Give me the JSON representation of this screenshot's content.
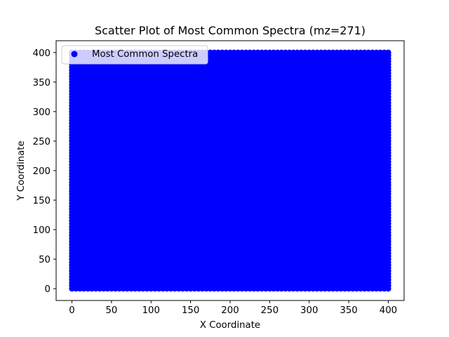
{
  "chart_data": {
    "type": "scatter",
    "title": "Scatter Plot of Most Common Spectra (mz=271)",
    "xlabel": "X Coordinate",
    "ylabel": "Y Coordinate",
    "xlim": [
      -20,
      420
    ],
    "ylim": [
      -20,
      420
    ],
    "xticks": [
      0,
      50,
      100,
      150,
      200,
      250,
      300,
      350,
      400
    ],
    "yticks": [
      0,
      50,
      100,
      150,
      200,
      250,
      300,
      350,
      400
    ],
    "grid": false,
    "legend_position": "upper-left",
    "series": [
      {
        "name": "Most Common Spectra",
        "color": "#0000ff",
        "marker": "circle",
        "x_range": [
          0,
          400
        ],
        "y_range": [
          0,
          400
        ],
        "coverage": "dense grid filling the full x and y range"
      }
    ]
  }
}
